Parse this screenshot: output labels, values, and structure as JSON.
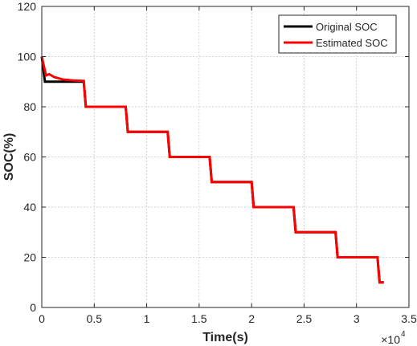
{
  "chart_data": {
    "type": "line",
    "xlabel": "Time(s)",
    "ylabel": "SOC(%)",
    "x_exponent_label": "×10",
    "x_exponent_power": "4",
    "x_tick_labels": [
      "0",
      "0.5",
      "1",
      "1.5",
      "2",
      "2.5",
      "3",
      "3.5"
    ],
    "y_tick_labels": [
      "0",
      "20",
      "40",
      "60",
      "80",
      "100",
      "120"
    ],
    "x_scale": 10000,
    "xlim": [
      0,
      3.5
    ],
    "ylim": [
      0,
      120
    ],
    "grid": true,
    "legend_position": "top-right",
    "series": [
      {
        "name": "Original SOC",
        "color": "#000000",
        "points": [
          [
            0,
            100
          ],
          [
            0.03,
            90
          ],
          [
            0.4,
            90
          ],
          [
            0.42,
            80
          ],
          [
            0.8,
            80
          ],
          [
            0.82,
            70
          ],
          [
            1.2,
            70
          ],
          [
            1.22,
            60
          ],
          [
            1.6,
            60
          ],
          [
            1.62,
            50
          ],
          [
            2.0,
            50
          ],
          [
            2.02,
            40
          ],
          [
            2.4,
            40
          ],
          [
            2.42,
            30
          ],
          [
            2.8,
            30
          ],
          [
            2.82,
            20
          ],
          [
            3.2,
            20
          ],
          [
            3.22,
            10
          ],
          [
            3.26,
            10
          ]
        ]
      },
      {
        "name": "Estimated SOC",
        "color": "#ff0000",
        "points": [
          [
            0,
            100
          ],
          [
            0.04,
            92.5
          ],
          [
            0.07,
            93
          ],
          [
            0.12,
            91.8
          ],
          [
            0.2,
            90.9
          ],
          [
            0.3,
            90.5
          ],
          [
            0.4,
            90.3
          ],
          [
            0.42,
            80
          ],
          [
            0.8,
            80
          ],
          [
            0.82,
            70
          ],
          [
            1.2,
            70
          ],
          [
            1.22,
            60
          ],
          [
            1.6,
            60
          ],
          [
            1.62,
            50
          ],
          [
            2.0,
            50
          ],
          [
            2.02,
            40
          ],
          [
            2.4,
            40
          ],
          [
            2.42,
            30
          ],
          [
            2.8,
            30
          ],
          [
            2.82,
            20
          ],
          [
            3.2,
            20
          ],
          [
            3.22,
            10
          ],
          [
            3.26,
            10
          ]
        ]
      }
    ]
  }
}
